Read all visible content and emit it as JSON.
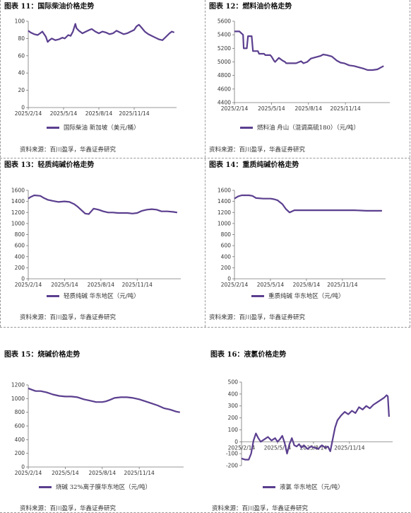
{
  "colors": {
    "line": "#5b3f8f",
    "axis": "#777777"
  },
  "source_text": "资料来源：百川盈孚，华鑫证券研究",
  "chart_data": [
    {
      "id": "c11",
      "type": "line",
      "title_num": "图表 11：",
      "title_text": "国际柴油价格走势",
      "legend": "国际柴油 新加坡（美元/桶）",
      "ylim": [
        0,
        100
      ],
      "yticks": [
        0,
        20,
        40,
        60,
        80,
        100
      ],
      "xticks": [
        "2025/2/14",
        "2025/5/14",
        "2025/8/14",
        "2025/11/14"
      ],
      "xrange": [
        0,
        12.6
      ],
      "xtick_pos": [
        0,
        3,
        6,
        9
      ],
      "x": [
        0,
        0.2,
        0.5,
        0.8,
        1.0,
        1.2,
        1.5,
        1.65,
        1.8,
        2.0,
        2.3,
        2.6,
        2.9,
        3.1,
        3.4,
        3.6,
        3.8,
        4.0,
        4.1,
        4.3,
        4.6,
        4.9,
        5.2,
        5.4,
        5.7,
        6.0,
        6.3,
        6.6,
        6.9,
        7.2,
        7.5,
        7.8,
        8.1,
        8.4,
        8.7,
        9.0,
        9.2,
        9.4,
        9.6,
        9.9,
        10.2,
        10.5,
        10.8,
        11.1,
        11.4,
        11.7,
        12.0,
        12.2,
        12.4
      ],
      "y": [
        89,
        87,
        85,
        84,
        86,
        88,
        82,
        76,
        78,
        80,
        78,
        79,
        81,
        80,
        84,
        83,
        88,
        97,
        92,
        89,
        86,
        88,
        90,
        91,
        88,
        86,
        88,
        87,
        85,
        86,
        89,
        87,
        85,
        86,
        88,
        90,
        94,
        96,
        93,
        88,
        85,
        83,
        81,
        79,
        78,
        82,
        86,
        88,
        87
      ]
    },
    {
      "id": "c12",
      "type": "line",
      "title_num": "图表 12：",
      "title_text": "燃料油价格走势",
      "legend": "燃料油 舟山（混调高硫180）（元/吨）",
      "ylim": [
        4400,
        5600
      ],
      "yticks": [
        4400,
        4600,
        4800,
        5000,
        5200,
        5400,
        5600
      ],
      "xticks": [
        "2025/2/14",
        "2025/5/14",
        "2025/8/14",
        "2025/11/14"
      ],
      "xrange": [
        0,
        12.6
      ],
      "xtick_pos": [
        0,
        3,
        6,
        9
      ],
      "x": [
        0,
        0.4,
        0.7,
        0.75,
        1.0,
        1.1,
        1.4,
        1.5,
        1.9,
        2.0,
        2.4,
        2.5,
        2.9,
        3.0,
        3.2,
        3.3,
        3.6,
        3.9,
        4.1,
        4.2,
        4.6,
        5.0,
        5.4,
        5.6,
        5.9,
        6.2,
        6.6,
        7.0,
        7.2,
        7.5,
        7.9,
        8.3,
        8.6,
        8.9,
        9.3,
        9.7,
        10.1,
        10.5,
        10.8,
        11.2,
        11.6,
        12.0,
        12.1
      ],
      "y": [
        5450,
        5450,
        5400,
        5200,
        5200,
        5380,
        5380,
        5160,
        5160,
        5120,
        5120,
        5100,
        5100,
        5080,
        5020,
        5000,
        5060,
        5020,
        5000,
        4980,
        4980,
        4980,
        5010,
        4980,
        5000,
        5050,
        5070,
        5090,
        5110,
        5100,
        5080,
        5020,
        4990,
        4980,
        4950,
        4940,
        4920,
        4900,
        4880,
        4880,
        4890,
        4930,
        4940
      ]
    },
    {
      "id": "c13",
      "type": "line",
      "title_num": "图表 13：",
      "title_text": "轻质纯碱价格走势",
      "legend": "轻质纯碱 华东地区（元/吨）",
      "ylim": [
        0,
        1600
      ],
      "yticks": [
        0,
        200,
        400,
        600,
        800,
        1000,
        1200,
        1400,
        1600
      ],
      "xticks": [
        "2025/2/14",
        "2025/5/14",
        "2025/8/14",
        "2025/11/14"
      ],
      "xrange": [
        0,
        12.6
      ],
      "xtick_pos": [
        0,
        3,
        6,
        9
      ],
      "x": [
        0,
        0.2,
        0.5,
        1.0,
        1.3,
        1.6,
        2.0,
        2.5,
        3.0,
        3.4,
        3.8,
        4.1,
        4.4,
        4.7,
        5.0,
        5.4,
        5.8,
        6.2,
        6.6,
        7.0,
        7.4,
        7.8,
        8.2,
        8.6,
        9.0,
        9.4,
        9.8,
        10.2,
        10.6,
        11.0,
        11.5,
        12.0,
        12.3
      ],
      "y": [
        1450,
        1480,
        1510,
        1500,
        1460,
        1430,
        1410,
        1390,
        1400,
        1390,
        1350,
        1300,
        1240,
        1180,
        1170,
        1270,
        1250,
        1220,
        1200,
        1200,
        1190,
        1190,
        1190,
        1180,
        1190,
        1230,
        1250,
        1260,
        1250,
        1220,
        1220,
        1210,
        1200
      ]
    },
    {
      "id": "c14",
      "type": "line",
      "title_num": "图表 14：",
      "title_text": "重质纯碱价格走势",
      "legend": "重质纯碱 华东地区（元/吨）",
      "ylim": [
        0,
        1600
      ],
      "yticks": [
        0,
        200,
        400,
        600,
        800,
        1000,
        1200,
        1400,
        1600
      ],
      "xticks": [
        "2025/2/14",
        "2025/5/14",
        "2025/8/14",
        "2025/11/14"
      ],
      "xrange": [
        0,
        12.6
      ],
      "xtick_pos": [
        0,
        3,
        6,
        9
      ],
      "x": [
        0,
        0.3,
        0.6,
        1.2,
        1.5,
        1.8,
        2.4,
        3.0,
        3.3,
        3.6,
        4.0,
        4.3,
        4.6,
        5.0,
        5.6,
        6.2,
        7.0,
        8.0,
        9.0,
        10.0,
        11.0,
        12.0,
        12.3
      ],
      "y": [
        1450,
        1490,
        1510,
        1510,
        1500,
        1460,
        1450,
        1450,
        1440,
        1420,
        1350,
        1260,
        1200,
        1240,
        1240,
        1240,
        1240,
        1240,
        1240,
        1240,
        1230,
        1230,
        1230
      ]
    },
    {
      "id": "c15",
      "type": "line",
      "title_num": "图表 15：",
      "title_text": "烧碱价格走势",
      "legend": "烧碱 32%离子膜华东地区（元/吨）",
      "ylim": [
        0,
        1200
      ],
      "yticks": [
        0,
        200,
        400,
        600,
        800,
        1000,
        1200
      ],
      "xticks": [
        "2025/2/14",
        "2025/5/14",
        "2025/8/14",
        "2025/11/14"
      ],
      "xrange": [
        0,
        12.6
      ],
      "xtick_pos": [
        0,
        3,
        6,
        9
      ],
      "x": [
        0,
        0.3,
        0.6,
        1.0,
        1.5,
        2.0,
        2.5,
        3.0,
        3.5,
        4.0,
        4.5,
        5.0,
        5.5,
        6.0,
        6.3,
        6.6,
        7.0,
        7.5,
        8.0,
        8.5,
        9.0,
        9.5,
        10.0,
        10.5,
        11.0,
        11.5,
        12.0,
        12.3
      ],
      "y": [
        1150,
        1130,
        1110,
        1110,
        1090,
        1060,
        1040,
        1030,
        1030,
        1020,
        990,
        970,
        950,
        950,
        960,
        980,
        1010,
        1020,
        1020,
        1010,
        990,
        960,
        930,
        900,
        860,
        840,
        810,
        800
      ]
    },
    {
      "id": "c16",
      "type": "line",
      "title_num": "图表 16：",
      "title_text": "液氯价格走势",
      "legend": "液氯 华东地区（元/吨）",
      "ylim": [
        -200,
        500
      ],
      "yticks": [
        -200,
        -100,
        0,
        100,
        200,
        300,
        400,
        500
      ],
      "xticks": [
        "2025/2/14",
        "2025/5/14",
        "2025/8/14",
        "2025/11/14"
      ],
      "xrange": [
        0,
        12.6
      ],
      "xtick_pos": [
        0,
        3,
        6,
        9
      ],
      "x": [
        0,
        0.3,
        0.6,
        0.8,
        1.0,
        1.2,
        1.4,
        1.6,
        1.9,
        2.2,
        2.5,
        2.8,
        3.0,
        3.2,
        3.4,
        3.6,
        3.8,
        4.0,
        4.2,
        4.4,
        4.6,
        4.8,
        5.0,
        5.2,
        5.5,
        5.8,
        6.1,
        6.4,
        6.7,
        7.0,
        7.2,
        7.4,
        7.6,
        7.8,
        8.0,
        8.3,
        8.6,
        8.9,
        9.2,
        9.5,
        9.8,
        10.1,
        10.4,
        10.7,
        11.0,
        11.3,
        11.6,
        11.9,
        12.1,
        12.2,
        12.3
      ],
      "y": [
        -140,
        -150,
        -150,
        -100,
        10,
        70,
        30,
        0,
        20,
        40,
        10,
        30,
        0,
        20,
        50,
        -10,
        -100,
        -20,
        30,
        -30,
        -40,
        -20,
        -50,
        -30,
        -60,
        -40,
        -50,
        -60,
        -30,
        -50,
        -40,
        -80,
        20,
        120,
        180,
        220,
        250,
        230,
        260,
        240,
        290,
        270,
        300,
        280,
        310,
        330,
        350,
        370,
        390,
        380,
        210
      ]
    }
  ]
}
